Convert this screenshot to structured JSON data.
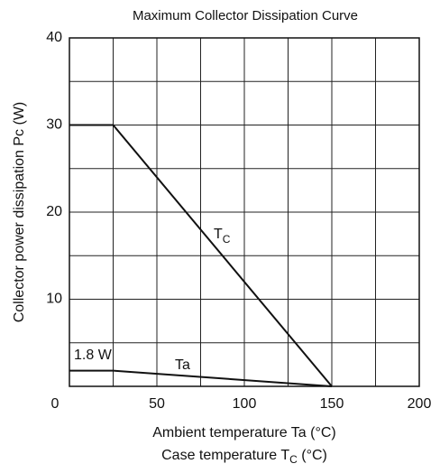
{
  "chart_data": {
    "type": "line",
    "title": "Maximum Collector Dissipation Curve",
    "ylabel": "Collector power dissipation  Pc  (W)",
    "xlabel": [
      "Ambient temperature  Ta  (°C)",
      {
        "text": "Case temperature  T",
        "sub": "C",
        "after": "  (°C)"
      }
    ],
    "x": [
      0,
      25,
      150
    ],
    "series": [
      {
        "name": {
          "text": "T",
          "sub": "C"
        },
        "color": "#111111",
        "values": [
          30,
          30,
          0
        ]
      },
      {
        "name": "Ta",
        "color": "#111111",
        "values": [
          1.8,
          1.8,
          0
        ]
      }
    ],
    "annotations": [
      "1.8 W"
    ],
    "xlim": [
      0,
      200
    ],
    "ylim": [
      0,
      40
    ],
    "xticks": [
      0,
      50,
      100,
      150,
      200
    ],
    "yticks": [
      10,
      20,
      30,
      40
    ],
    "xminorticks": [
      25,
      75,
      125,
      175
    ],
    "yminorticks": [
      5,
      15,
      25,
      35
    ],
    "grid": true
  }
}
